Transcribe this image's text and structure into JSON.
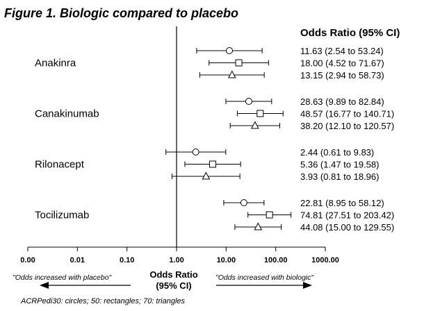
{
  "chart_data": {
    "type": "forest",
    "title": "Figure 1. Biologic compared to placebo",
    "column_header": "Odds Ratio (95% CI)",
    "x_axis": {
      "scale": "log",
      "range": [
        0.001,
        1000
      ],
      "ticks": [
        0.001,
        0.01,
        0.1,
        1,
        10,
        100,
        1000
      ],
      "tick_labels": [
        "0.00",
        "0.01",
        "0.10",
        "1.00",
        "10.00",
        "100.00",
        "1000.00"
      ],
      "title_line1": "Odds Ratio",
      "title_line2": "(95% CI)",
      "reference_line": 1
    },
    "left_note": "\"Odds increased with placebo\"",
    "right_note": "\"Odds increased with biologic\"",
    "footnote": "ACRPedi30: circles; 50: rectangles; 70: triangles",
    "groups": [
      {
        "name": "Anakinra",
        "rows": [
          {
            "marker": "circle",
            "or": 11.63,
            "lo": 2.54,
            "hi": 53.24,
            "label": "11.63 (2.54 to 53.24)"
          },
          {
            "marker": "square",
            "or": 18.0,
            "lo": 4.52,
            "hi": 71.67,
            "label": "18.00 (4.52 to 71.67)"
          },
          {
            "marker": "triangle",
            "or": 13.15,
            "lo": 2.94,
            "hi": 58.73,
            "label": "13.15 (2.94 to 58.73)"
          }
        ]
      },
      {
        "name": "Canakinumab",
        "rows": [
          {
            "marker": "circle",
            "or": 28.63,
            "lo": 9.89,
            "hi": 82.84,
            "label": "28.63 (9.89 to 82.84)"
          },
          {
            "marker": "square",
            "or": 48.57,
            "lo": 16.77,
            "hi": 140.71,
            "label": "48.57 (16.77 to 140.71)"
          },
          {
            "marker": "triangle",
            "or": 38.2,
            "lo": 12.1,
            "hi": 120.57,
            "label": "38.20 (12.10 to 120.57)"
          }
        ]
      },
      {
        "name": "Rilonacept",
        "rows": [
          {
            "marker": "circle",
            "or": 2.44,
            "lo": 0.61,
            "hi": 9.83,
            "label": "2.44 (0.61 to 9.83)"
          },
          {
            "marker": "square",
            "or": 5.36,
            "lo": 1.47,
            "hi": 19.58,
            "label": "5.36 (1.47 to 19.58)"
          },
          {
            "marker": "triangle",
            "or": 3.93,
            "lo": 0.81,
            "hi": 18.96,
            "label": "3.93 (0.81 to 18.96)"
          }
        ]
      },
      {
        "name": "Tocilizumab",
        "rows": [
          {
            "marker": "circle",
            "or": 22.81,
            "lo": 8.95,
            "hi": 58.12,
            "label": "22.81 (8.95 to 58.12)"
          },
          {
            "marker": "square",
            "or": 74.81,
            "lo": 27.51,
            "hi": 203.42,
            "label": "74.81 (27.51 to 203.42)"
          },
          {
            "marker": "triangle",
            "or": 44.08,
            "lo": 15.0,
            "hi": 129.55,
            "label": "44.08 (15.00 to 129.55)"
          }
        ]
      }
    ]
  }
}
